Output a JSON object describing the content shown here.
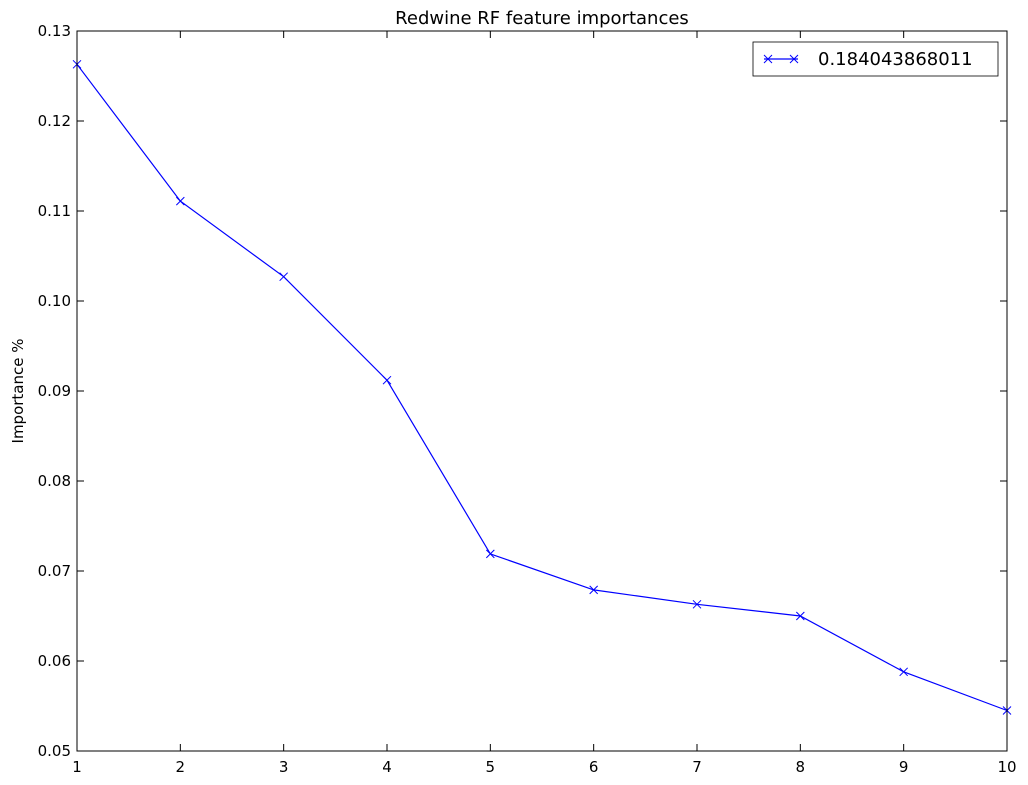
{
  "chart_data": {
    "type": "line",
    "title": "Redwine RF feature importances",
    "xlabel": "",
    "ylabel": "Importance %",
    "xlim": [
      1,
      10
    ],
    "ylim": [
      0.05,
      0.13
    ],
    "x_ticks": [
      "1",
      "2",
      "3",
      "4",
      "5",
      "6",
      "7",
      "8",
      "9",
      "10"
    ],
    "y_ticks": [
      "0.05",
      "0.06",
      "0.07",
      "0.08",
      "0.09",
      "0.10",
      "0.11",
      "0.12",
      "0.13"
    ],
    "grid": false,
    "legend_position": "top-right",
    "series": [
      {
        "name": "0.184043868011",
        "color": "#0000ff",
        "marker": "x",
        "x": [
          1,
          2,
          3,
          4,
          5,
          6,
          7,
          8,
          9,
          10
        ],
        "values": [
          0.1263,
          0.1111,
          0.1027,
          0.0912,
          0.0719,
          0.0679,
          0.0663,
          0.065,
          0.0588,
          0.0545
        ]
      }
    ]
  }
}
